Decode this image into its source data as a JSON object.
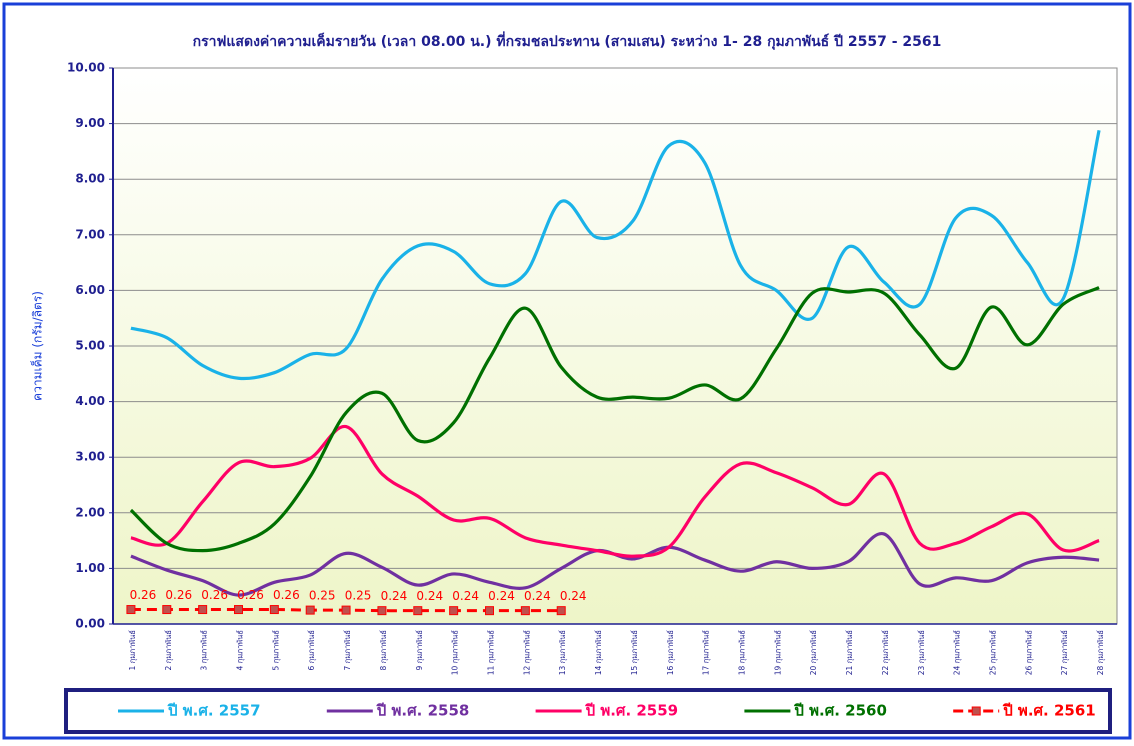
{
  "chart_data": {
    "type": "line",
    "title": "กราฟแสดงค่าความเค็มรายวัน (เวลา 08.00 น.) ที่กรมชลประทาน (สามเสน) ระหว่าง 1- 28 กุมภาพันธ์ ปี 2557 - 2561",
    "y_label": "ความเค็ม (กรัม/ลิตร)",
    "categories": [
      "1 กุมภาพันธ์",
      "2 กุมภาพันธ์",
      "3 กุมภาพันธ์",
      "4 กุมภาพันธ์",
      "5 กุมภาพันธ์",
      "6 กุมภาพันธ์",
      "7 กุมภาพันธ์",
      "8 กุมภาพันธ์",
      "9 กุมภาพันธ์",
      "10 กุมภาพันธ์",
      "11 กุมภาพันธ์",
      "12 กุมภาพันธ์",
      "13 กุมภาพันธ์",
      "14 กุมภาพันธ์",
      "15 กุมภาพันธ์",
      "16 กุมภาพันธ์",
      "17 กุมภาพันธ์",
      "18 กุมภาพันธ์",
      "19 กุมภาพันธ์",
      "20 กุมภาพันธ์",
      "21 กุมภาพันธ์",
      "22 กุมภาพันธ์",
      "23 กุมภาพันธ์",
      "24 กุมภาพันธ์",
      "25 กุมภาพันธ์",
      "26 กุมภาพันธ์",
      "27 กุมภาพันธ์",
      "28 กุมภาพันธ์"
    ],
    "series": [
      {
        "name": "ปี พ.ศ. 2557",
        "color": "#1ab2e8",
        "values": [
          5.32,
          5.15,
          4.65,
          4.42,
          4.52,
          4.85,
          4.95,
          6.2,
          6.8,
          6.7,
          6.12,
          6.3,
          7.6,
          6.95,
          7.25,
          8.6,
          8.3,
          6.45,
          6.0,
          5.5,
          6.78,
          6.15,
          5.75,
          7.3,
          7.35,
          6.5,
          5.85,
          8.88
        ]
      },
      {
        "name": "ปี พ.ศ. 2558",
        "color": "#7030a0",
        "values": [
          1.22,
          0.97,
          0.78,
          0.52,
          0.75,
          0.88,
          1.27,
          1.02,
          0.7,
          0.9,
          0.75,
          0.65,
          1.0,
          1.32,
          1.17,
          1.38,
          1.15,
          0.95,
          1.12,
          1.0,
          1.12,
          1.62,
          0.72,
          0.83,
          0.78,
          1.1,
          1.2,
          1.15
        ]
      },
      {
        "name": "ปี พ.ศ. 2559",
        "color": "#ff0066",
        "values": [
          1.55,
          1.45,
          2.2,
          2.9,
          2.83,
          2.98,
          3.55,
          2.7,
          2.3,
          1.87,
          1.9,
          1.55,
          1.42,
          1.32,
          1.22,
          1.38,
          2.28,
          2.88,
          2.72,
          2.45,
          2.15,
          2.7,
          1.45,
          1.45,
          1.75,
          1.98,
          1.33,
          1.5
        ]
      },
      {
        "name": "ปี พ.ศ. 2560",
        "color": "#007000",
        "values": [
          2.05,
          1.45,
          1.32,
          1.45,
          1.8,
          2.65,
          3.8,
          4.15,
          3.3,
          3.62,
          4.78,
          5.68,
          4.62,
          4.08,
          4.08,
          4.06,
          4.3,
          4.05,
          4.95,
          5.95,
          5.97,
          5.95,
          5.2,
          4.6,
          5.7,
          5.02,
          5.75,
          6.05
        ]
      },
      {
        "name": "ปี พ.ศ. 2561",
        "color": "#ff0000",
        "dashed": true,
        "markers": true,
        "data_labels": true,
        "values": [
          0.26,
          0.26,
          0.26,
          0.26,
          0.26,
          0.25,
          0.25,
          0.24,
          0.24,
          0.24,
          0.24,
          0.24,
          0.24,
          null,
          null,
          null,
          null,
          null,
          null,
          null,
          null,
          null,
          null,
          null,
          null,
          null,
          null,
          null
        ]
      }
    ],
    "ylim": [
      0,
      10
    ],
    "yticks": [
      {
        "value": 0,
        "label": "0.00"
      },
      {
        "value": 1,
        "label": "1.00"
      },
      {
        "value": 2,
        "label": "2.00"
      },
      {
        "value": 3,
        "label": "3.00"
      },
      {
        "value": 4,
        "label": "4.00"
      },
      {
        "value": 5,
        "label": "5.00"
      },
      {
        "value": 6,
        "label": "6.00"
      },
      {
        "value": 7,
        "label": "7.00"
      },
      {
        "value": 8,
        "label": "8.00"
      },
      {
        "value": 9,
        "label": "9.00"
      },
      {
        "value": 10,
        "label": "10.00"
      }
    ],
    "grid": true,
    "smooth": true,
    "legend": "bottom"
  }
}
